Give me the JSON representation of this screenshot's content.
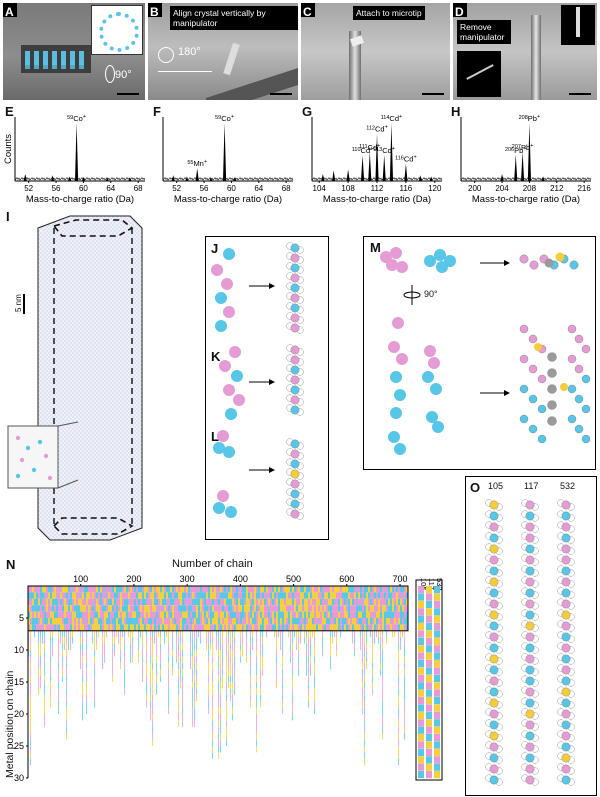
{
  "panels": {
    "A": {
      "letter": "A",
      "rotation": "90°"
    },
    "B": {
      "letter": "B",
      "caption": "Align crystal vertically by manipulator",
      "rotation": "180°"
    },
    "C": {
      "letter": "C",
      "caption": "Attach to microtip"
    },
    "D": {
      "letter": "D",
      "caption": "Remove manipulator"
    },
    "E": {
      "letter": "E"
    },
    "F": {
      "letter": "F"
    },
    "G": {
      "letter": "G"
    },
    "H": {
      "letter": "H"
    },
    "I": {
      "letter": "I",
      "scale": "5 nm"
    },
    "J": {
      "letter": "J"
    },
    "K": {
      "letter": "K"
    },
    "L": {
      "letter": "L"
    },
    "M": {
      "letter": "M",
      "rotation": "90°"
    },
    "N": {
      "letter": "N"
    },
    "O": {
      "letter": "O",
      "chain_labels": [
        "105",
        "117",
        "532"
      ]
    }
  },
  "chart_data": [
    {
      "type": "line",
      "panel": "E",
      "xlabel": "Mass-to-charge ratio (Da)",
      "ylabel": "Counts",
      "xlim": [
        50,
        69
      ],
      "xticks": [
        "52",
        "56",
        "60",
        "64",
        "68"
      ],
      "peaks": [
        {
          "x": 59,
          "h": 1.0,
          "label_el": "Co",
          "label_mass": "59",
          "label_sup": "+"
        },
        {
          "x": 51.5,
          "h": 0.12
        },
        {
          "x": 55.5,
          "h": 0.1
        },
        {
          "x": 58,
          "h": 0.08
        },
        {
          "x": 60,
          "h": 0.07
        },
        {
          "x": 63.5,
          "h": 0.06
        },
        {
          "x": 66.8,
          "h": 0.06
        }
      ]
    },
    {
      "type": "line",
      "panel": "F",
      "xlabel": "Mass-to-charge ratio (Da)",
      "ylabel": "",
      "xlim": [
        50,
        69
      ],
      "xticks": [
        "52",
        "56",
        "60",
        "64",
        "68"
      ],
      "peaks": [
        {
          "x": 59,
          "h": 1.0,
          "label_el": "Co",
          "label_mass": "59",
          "label_sup": "+"
        },
        {
          "x": 55,
          "h": 0.22,
          "label_el": "Mn",
          "label_mass": "55",
          "label_sup": "+"
        },
        {
          "x": 51.5,
          "h": 0.1
        },
        {
          "x": 53.5,
          "h": 0.08
        },
        {
          "x": 57,
          "h": 0.06
        },
        {
          "x": 60.5,
          "h": 0.06
        }
      ]
    },
    {
      "type": "line",
      "panel": "G",
      "xlabel": "Mass-to-charge ratio (Da)",
      "ylabel": "",
      "xlim": [
        103,
        121
      ],
      "xticks": [
        "104",
        "108",
        "112",
        "116",
        "120"
      ],
      "peaks": [
        {
          "x": 106,
          "h": 0.18
        },
        {
          "x": 108,
          "h": 0.2
        },
        {
          "x": 110,
          "h": 0.45,
          "label_el": "Cd",
          "label_mass": "110",
          "label_sup": "+"
        },
        {
          "x": 111,
          "h": 0.5,
          "label_el": "Cd",
          "label_mass": "111",
          "label_sup": "+"
        },
        {
          "x": 112,
          "h": 0.82,
          "label_el": "Cd",
          "label_mass": "112",
          "label_sup": "+"
        },
        {
          "x": 113,
          "h": 0.45,
          "label_el": "Cd",
          "label_mass": "113",
          "label_sup": "+"
        },
        {
          "x": 114,
          "h": 1.0,
          "label_el": "Cd",
          "label_mass": "114",
          "label_sup": "+"
        },
        {
          "x": 116,
          "h": 0.3,
          "label_el": "Cd",
          "label_mass": "116",
          "label_sup": "+"
        },
        {
          "x": 104.5,
          "h": 0.12
        },
        {
          "x": 118,
          "h": 0.1
        },
        {
          "x": 119.5,
          "h": 0.08
        }
      ]
    },
    {
      "type": "line",
      "panel": "H",
      "xlabel": "Mass-to-charge ratio (Da)",
      "ylabel": "",
      "xlim": [
        198,
        217
      ],
      "xticks": [
        "200",
        "204",
        "208",
        "212",
        "216"
      ],
      "peaks": [
        {
          "x": 206,
          "h": 0.45,
          "label_el": "Pb",
          "label_mass": "206",
          "label_sup": "+"
        },
        {
          "x": 207,
          "h": 0.5,
          "label_el": "Pb",
          "label_mass": "207",
          "label_sup": "+"
        },
        {
          "x": 208,
          "h": 1.0,
          "label_el": "Pb",
          "label_mass": "208",
          "label_sup": "+"
        },
        {
          "x": 204,
          "h": 0.12
        },
        {
          "x": 210,
          "h": 0.08
        }
      ]
    },
    {
      "type": "heatmap",
      "panel": "N",
      "title": "Number of chain",
      "ylabel": "Metal position on chain",
      "xticks": [
        "100",
        "200",
        "300",
        "400",
        "500",
        "600",
        "700"
      ],
      "yticks": [
        "5",
        "10",
        "15",
        "20",
        "25",
        "30"
      ],
      "xlim": [
        1,
        715
      ],
      "ylim": [
        0,
        30
      ],
      "colors": [
        "#e99ad6",
        "#59c8e6",
        "#f5cf3c",
        "#c6a6dd"
      ],
      "inset_labels": [
        "105",
        "117",
        "532"
      ]
    }
  ],
  "colors": {
    "co": "#58c6e6",
    "cd": "#e59cd4",
    "yellow": "#f5cc3a",
    "grey": "#9a9a9a",
    "chain_white": "#ffffff"
  }
}
